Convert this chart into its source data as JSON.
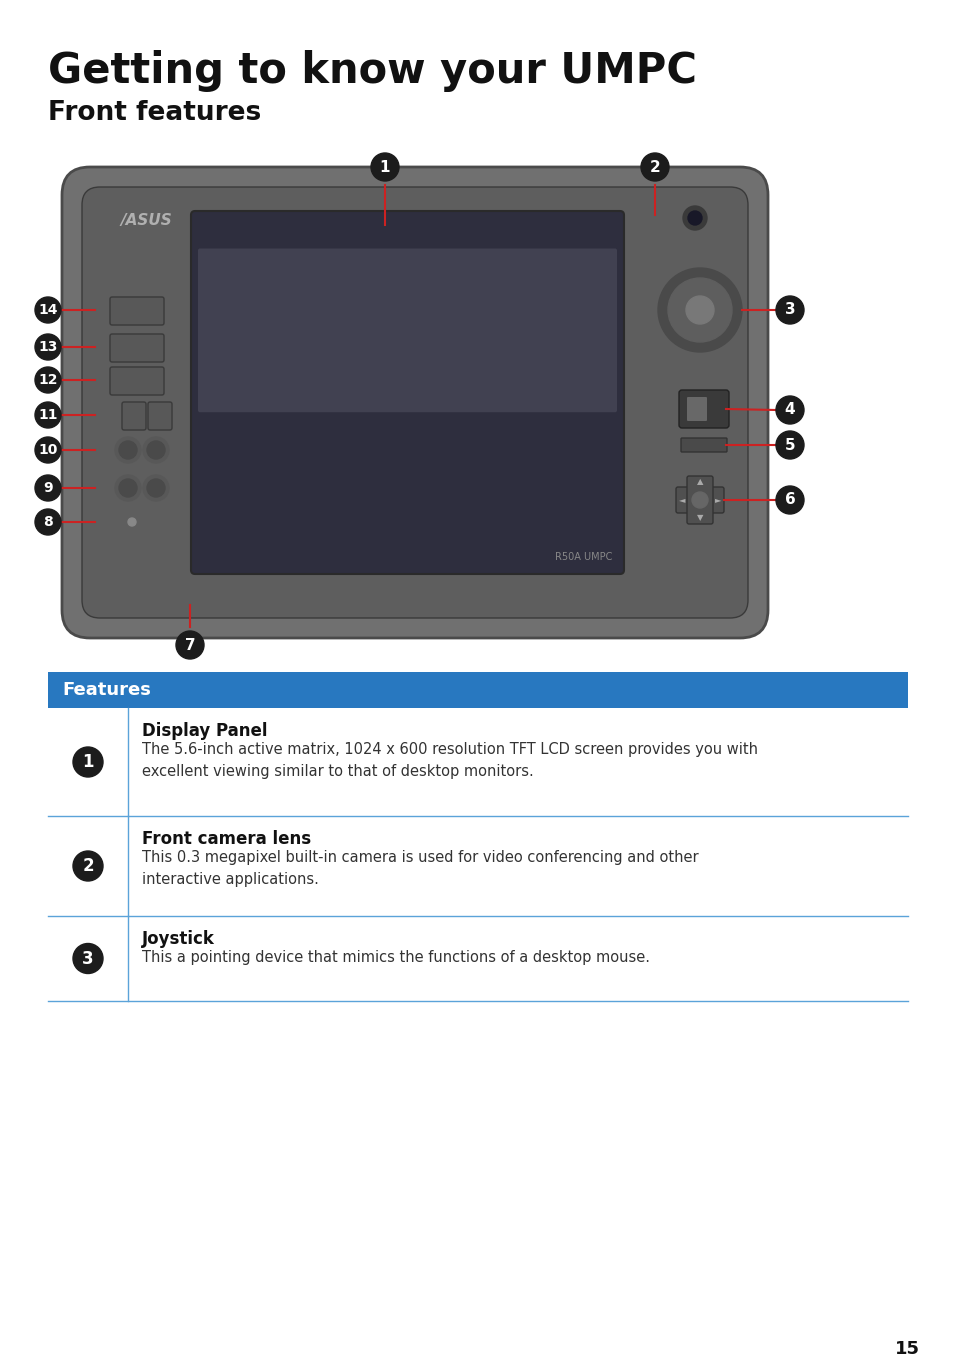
{
  "title": "Getting to know your UMPC",
  "subtitle": "Front features",
  "title_fontsize": 30,
  "subtitle_fontsize": 19,
  "bg_color": "#ffffff",
  "header_bg": "#2878c0",
  "header_text": "Features",
  "header_text_color": "#ffffff",
  "header_fontsize": 13,
  "table_line_color": "#5ba3d9",
  "features": [
    {
      "num": "1",
      "title": "Display Panel",
      "desc": "The 5.6-inch active matrix, 1024 x 600 resolution TFT LCD screen provides you with\nexcellent viewing similar to that of desktop monitors."
    },
    {
      "num": "2",
      "title": "Front camera lens",
      "desc": "This 0.3 megapixel built-in camera is used for video conferencing and other\ninteractive applications."
    },
    {
      "num": "3",
      "title": "Joystick",
      "desc": "This a pointing device that mimics the functions of a desktop mouse."
    }
  ],
  "page_number": "15"
}
